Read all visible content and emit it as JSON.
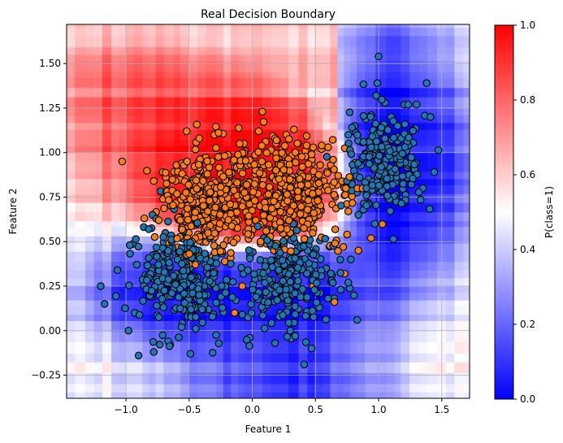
{
  "chart_data": {
    "type": "scatter",
    "title": "Real Decision Boundary",
    "xlabel": "Feature 1",
    "ylabel": "Feature 2",
    "xlim": [
      -1.47,
      1.72
    ],
    "ylim": [
      -0.38,
      1.72
    ],
    "xticks": [
      "−1.0",
      "−0.5",
      "0.0",
      "0.5",
      "1.0",
      "1.5"
    ],
    "xtick_values": [
      -1.0,
      -0.5,
      0.0,
      0.5,
      1.0,
      1.5
    ],
    "yticks": [
      "−0.25",
      "0.00",
      "0.25",
      "0.50",
      "0.75",
      "1.00",
      "1.25",
      "1.50"
    ],
    "ytick_values": [
      -0.25,
      0.0,
      0.25,
      0.5,
      0.75,
      1.0,
      1.25,
      1.5
    ],
    "grid": true,
    "background": "decision boundary heatmap of P(class=1), piecewise-constant (tree-ensemble style)",
    "colorbar": {
      "label": "P(class=1)",
      "range": [
        0.0,
        1.0
      ],
      "ticks": [
        "0.0",
        "0.2",
        "0.4",
        "0.6",
        "0.8",
        "1.0"
      ],
      "tick_values": [
        0.0,
        0.2,
        0.4,
        0.6,
        0.8,
        1.0
      ],
      "colormap": "bwr",
      "low_color": "#0000ff",
      "mid_color": "#ffffff",
      "high_color": "#ff0000"
    },
    "series": [
      {
        "class": 0,
        "color": "#1f77b4",
        "edgecolor": "#000000",
        "clusters_estimated": [
          {
            "center": [
              -0.55,
              0.3
            ],
            "spread": [
              0.2,
              0.15
            ],
            "n": 260
          },
          {
            "center": [
              0.3,
              0.32
            ],
            "spread": [
              0.18,
              0.15
            ],
            "n": 210
          },
          {
            "center": [
              1.05,
              0.95
            ],
            "spread": [
              0.14,
              0.15
            ],
            "n": 190
          }
        ],
        "points": [
          [
            -1.2,
            0.25
          ],
          [
            -1.17,
            0.15
          ],
          [
            -0.98,
            0.0
          ],
          [
            -0.97,
            0.48
          ],
          [
            -0.9,
            -0.14
          ],
          [
            -0.93,
            0.1
          ],
          [
            -0.78,
            -0.12
          ],
          [
            -0.65,
            -0.08
          ],
          [
            -0.49,
            -0.13
          ],
          [
            -0.82,
            0.57
          ],
          [
            -0.79,
            0.65
          ],
          [
            -0.56,
            0.02
          ],
          [
            -0.45,
            0.08
          ],
          [
            -0.42,
            0.2
          ],
          [
            -0.33,
            0.27
          ],
          [
            -0.29,
            0.41
          ],
          [
            -0.13,
            0.17
          ],
          [
            -0.08,
            0.09
          ],
          [
            -0.02,
            -0.04
          ],
          [
            -0.07,
            0.32
          ],
          [
            0.03,
            0.19
          ],
          [
            0.18,
            -0.07
          ],
          [
            0.3,
            0.0
          ],
          [
            0.34,
            -0.03
          ],
          [
            0.41,
            -0.19
          ],
          [
            0.47,
            -0.1
          ],
          [
            0.53,
            0.13
          ],
          [
            0.6,
            0.18
          ],
          [
            0.63,
            0.31
          ],
          [
            0.7,
            0.23
          ],
          [
            0.76,
            0.27
          ],
          [
            0.78,
            0.4
          ],
          [
            0.83,
            0.06
          ],
          [
            0.97,
            0.6
          ],
          [
            0.84,
            0.65
          ],
          [
            0.85,
            0.86
          ],
          [
            0.91,
            0.77
          ],
          [
            0.9,
            0.99
          ],
          [
            0.88,
            1.06
          ],
          [
            0.95,
            1.09
          ],
          [
            0.98,
            1.32
          ],
          [
            0.99,
            1.39
          ],
          [
            1.0,
            1.54
          ],
          [
            1.05,
            1.28
          ],
          [
            1.1,
            1.2
          ],
          [
            1.15,
            1.15
          ],
          [
            1.18,
            1.08
          ],
          [
            1.22,
            1.01
          ],
          [
            1.25,
            0.94
          ],
          [
            1.3,
            1.27
          ],
          [
            1.38,
            1.39
          ],
          [
            1.41,
            1.2
          ],
          [
            1.44,
            0.89
          ],
          [
            1.35,
            0.8
          ],
          [
            1.23,
            0.86
          ],
          [
            1.08,
            0.74
          ],
          [
            1.0,
            0.8
          ],
          [
            0.92,
            0.71
          ],
          [
            0.81,
            1.15
          ],
          [
            0.76,
            1.1
          ]
        ]
      },
      {
        "class": 1,
        "color": "#ff7f0e",
        "edgecolor": "#000000",
        "clusters_estimated": [
          {
            "center": [
              -0.35,
              0.72
            ],
            "spread": [
              0.18,
              0.15
            ],
            "n": 330
          },
          {
            "center": [
              0.3,
              0.78
            ],
            "spread": [
              0.22,
              0.15
            ],
            "n": 330
          }
        ],
        "points": [
          [
            -1.03,
            0.95
          ],
          [
            -0.78,
            0.84
          ],
          [
            -0.71,
            0.89
          ],
          [
            -0.68,
            0.78
          ],
          [
            -0.6,
            0.93
          ],
          [
            -0.52,
            1.12
          ],
          [
            -0.42,
            1.08
          ],
          [
            -0.3,
            1.1
          ],
          [
            -0.25,
            0.98
          ],
          [
            -0.1,
            1.05
          ],
          [
            0.05,
            1.12
          ],
          [
            0.08,
            1.23
          ],
          [
            0.18,
            1.08
          ],
          [
            0.27,
            1.1
          ],
          [
            0.33,
            1.13
          ],
          [
            0.43,
            1.04
          ],
          [
            0.47,
            0.99
          ],
          [
            0.55,
            1.04
          ],
          [
            0.6,
            1.03
          ],
          [
            0.64,
            0.96
          ],
          [
            0.68,
            0.87
          ],
          [
            0.73,
            0.76
          ],
          [
            0.76,
            0.67
          ],
          [
            0.75,
            0.54
          ],
          [
            0.72,
            0.47
          ],
          [
            0.73,
            0.32
          ],
          [
            0.65,
            0.16
          ],
          [
            0.48,
            0.25
          ],
          [
            -0.08,
            0.25
          ],
          [
            -0.14,
            0.1
          ],
          [
            -0.3,
            0.33
          ],
          [
            -0.45,
            0.37
          ],
          [
            -0.5,
            0.48
          ],
          [
            -0.68,
            0.52
          ],
          [
            -0.74,
            0.62
          ],
          [
            0.94,
            0.52
          ],
          [
            0.84,
            0.45
          ]
        ]
      }
    ]
  }
}
